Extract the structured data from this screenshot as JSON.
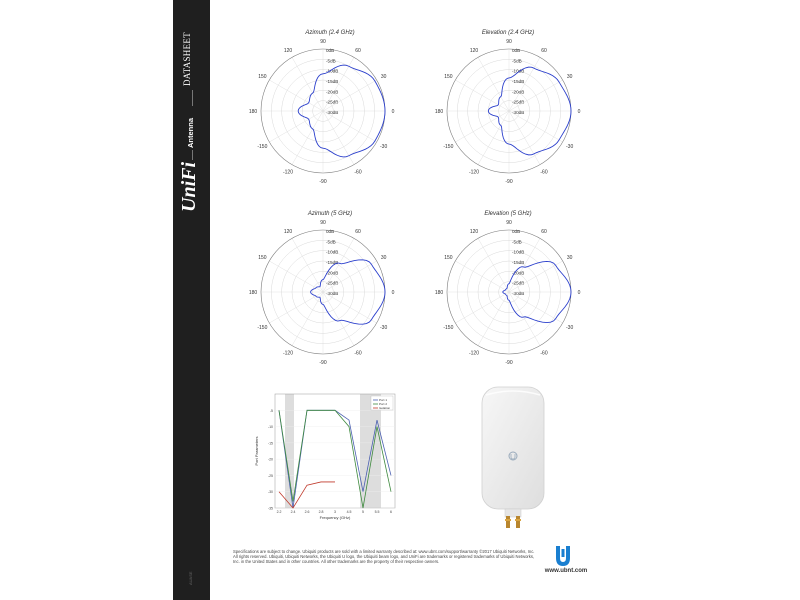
{
  "sidebar": {
    "datasheet_label": "DATASHEET",
    "product_type": "Antenna",
    "brand": "UniFi",
    "footer_code": "AUASE"
  },
  "polar_plots": [
    {
      "title": "Azimuth (2.4 GHz)"
    },
    {
      "title": "Elevation (2.4 GHz)"
    },
    {
      "title": "Azimuth (5 GHz)"
    },
    {
      "title": "Elevation (5 GHz)"
    }
  ],
  "polar_axis": {
    "angle_labels": [
      "90",
      "60",
      "30",
      "0",
      "-30",
      "-60",
      "-90",
      "-120",
      "-150",
      "180",
      "150",
      "120"
    ],
    "ring_labels": [
      "0dB",
      "-5dB",
      "-10dB",
      "-15dB",
      "-20dB",
      "-25dB",
      "-30dB"
    ]
  },
  "vswr_chart": {
    "ylabel": "Port Parameters",
    "xlabel": "Frequency (GHz)",
    "legend": [
      "Port 1",
      "Port 2",
      "Isolation"
    ],
    "y_ticks": [
      "-5",
      "-10",
      "-15",
      "-20",
      "-25",
      "-30",
      "-35"
    ],
    "x_ticks": [
      "2.2",
      "2.4",
      "2.6",
      "2.8",
      "3",
      "4.5",
      "5",
      "5.5",
      "6"
    ]
  },
  "footer": {
    "text": "Specifications are subject to change. Ubiquiti products are sold with a limited warranty described at: www.ubnt.com/support/warranty ©2017 Ubiquiti Networks, Inc. All rights reserved. Ubiquiti, Ubiquiti Networks, the Ubiquiti U logo, the Ubiquiti beam logo, and UniFi are trademarks or registered trademarks of Ubiquiti Networks, Inc. in the United States and in other countries. All other trademarks are the property of their respective owners.",
    "url": "www.ubnt.com"
  },
  "colors": {
    "pattern": "#2b3fcc",
    "sidebar": "#1f1f1f",
    "port1": "#4a5fb0",
    "port2": "#3f8a3f",
    "isolation": "#c0392b"
  },
  "chart_data": [
    {
      "type": "polar",
      "title": "Azimuth (2.4 GHz)",
      "angle_deg": [
        0,
        30,
        60,
        90,
        120,
        150,
        180,
        -150,
        -120,
        -90,
        -60,
        -30
      ],
      "gain_db": [
        0,
        -1,
        -5,
        -12,
        -20,
        -22,
        -18,
        -22,
        -20,
        -12,
        -5,
        -1
      ],
      "rlim": [
        -30,
        0
      ]
    },
    {
      "type": "polar",
      "title": "Elevation (2.4 GHz)",
      "angle_deg": [
        0,
        30,
        60,
        90,
        120,
        150,
        180,
        -150,
        -120,
        -90,
        -60,
        -30
      ],
      "gain_db": [
        0,
        -2,
        -6,
        -14,
        -22,
        -24,
        -20,
        -24,
        -22,
        -14,
        -6,
        -2
      ],
      "rlim": [
        -30,
        0
      ]
    },
    {
      "type": "polar",
      "title": "Azimuth (5 GHz)",
      "angle_deg": [
        0,
        30,
        60,
        90,
        120,
        150,
        180,
        -150,
        -120,
        -90,
        -60,
        -30
      ],
      "gain_db": [
        0,
        -3,
        -14,
        -24,
        -27,
        -26,
        -24,
        -26,
        -27,
        -24,
        -14,
        -3
      ],
      "rlim": [
        -30,
        0
      ]
    },
    {
      "type": "polar",
      "title": "Elevation (5 GHz)",
      "angle_deg": [
        0,
        30,
        60,
        90,
        120,
        150,
        180,
        -150,
        -120,
        -90,
        -60,
        -30
      ],
      "gain_db": [
        0,
        -4,
        -16,
        -26,
        -28,
        -28,
        -27,
        -28,
        -28,
        -26,
        -16,
        -4
      ],
      "rlim": [
        -30,
        0
      ]
    },
    {
      "type": "line",
      "ylabel": "Port Parameters",
      "xlabel": "Frequency (GHz)",
      "series": [
        {
          "name": "Port 1",
          "x": [
            2.2,
            2.4,
            2.6,
            2.8,
            3,
            4.5,
            5,
            5.5,
            6
          ],
          "values": [
            -5,
            -35,
            -5,
            -5,
            -5,
            -8,
            -30,
            -8,
            -25
          ]
        },
        {
          "name": "Port 2",
          "x": [
            2.2,
            2.4,
            2.6,
            2.8,
            3,
            4.5,
            5,
            5.5,
            6
          ],
          "values": [
            -5,
            -33,
            -5,
            -5,
            -5,
            -10,
            -35,
            -10,
            -30
          ]
        },
        {
          "name": "Isolation",
          "x": [
            2.2,
            2.4,
            2.6,
            2.8,
            3
          ],
          "values": [
            -30,
            -35,
            -28,
            -27,
            -27
          ]
        }
      ]
    }
  ]
}
